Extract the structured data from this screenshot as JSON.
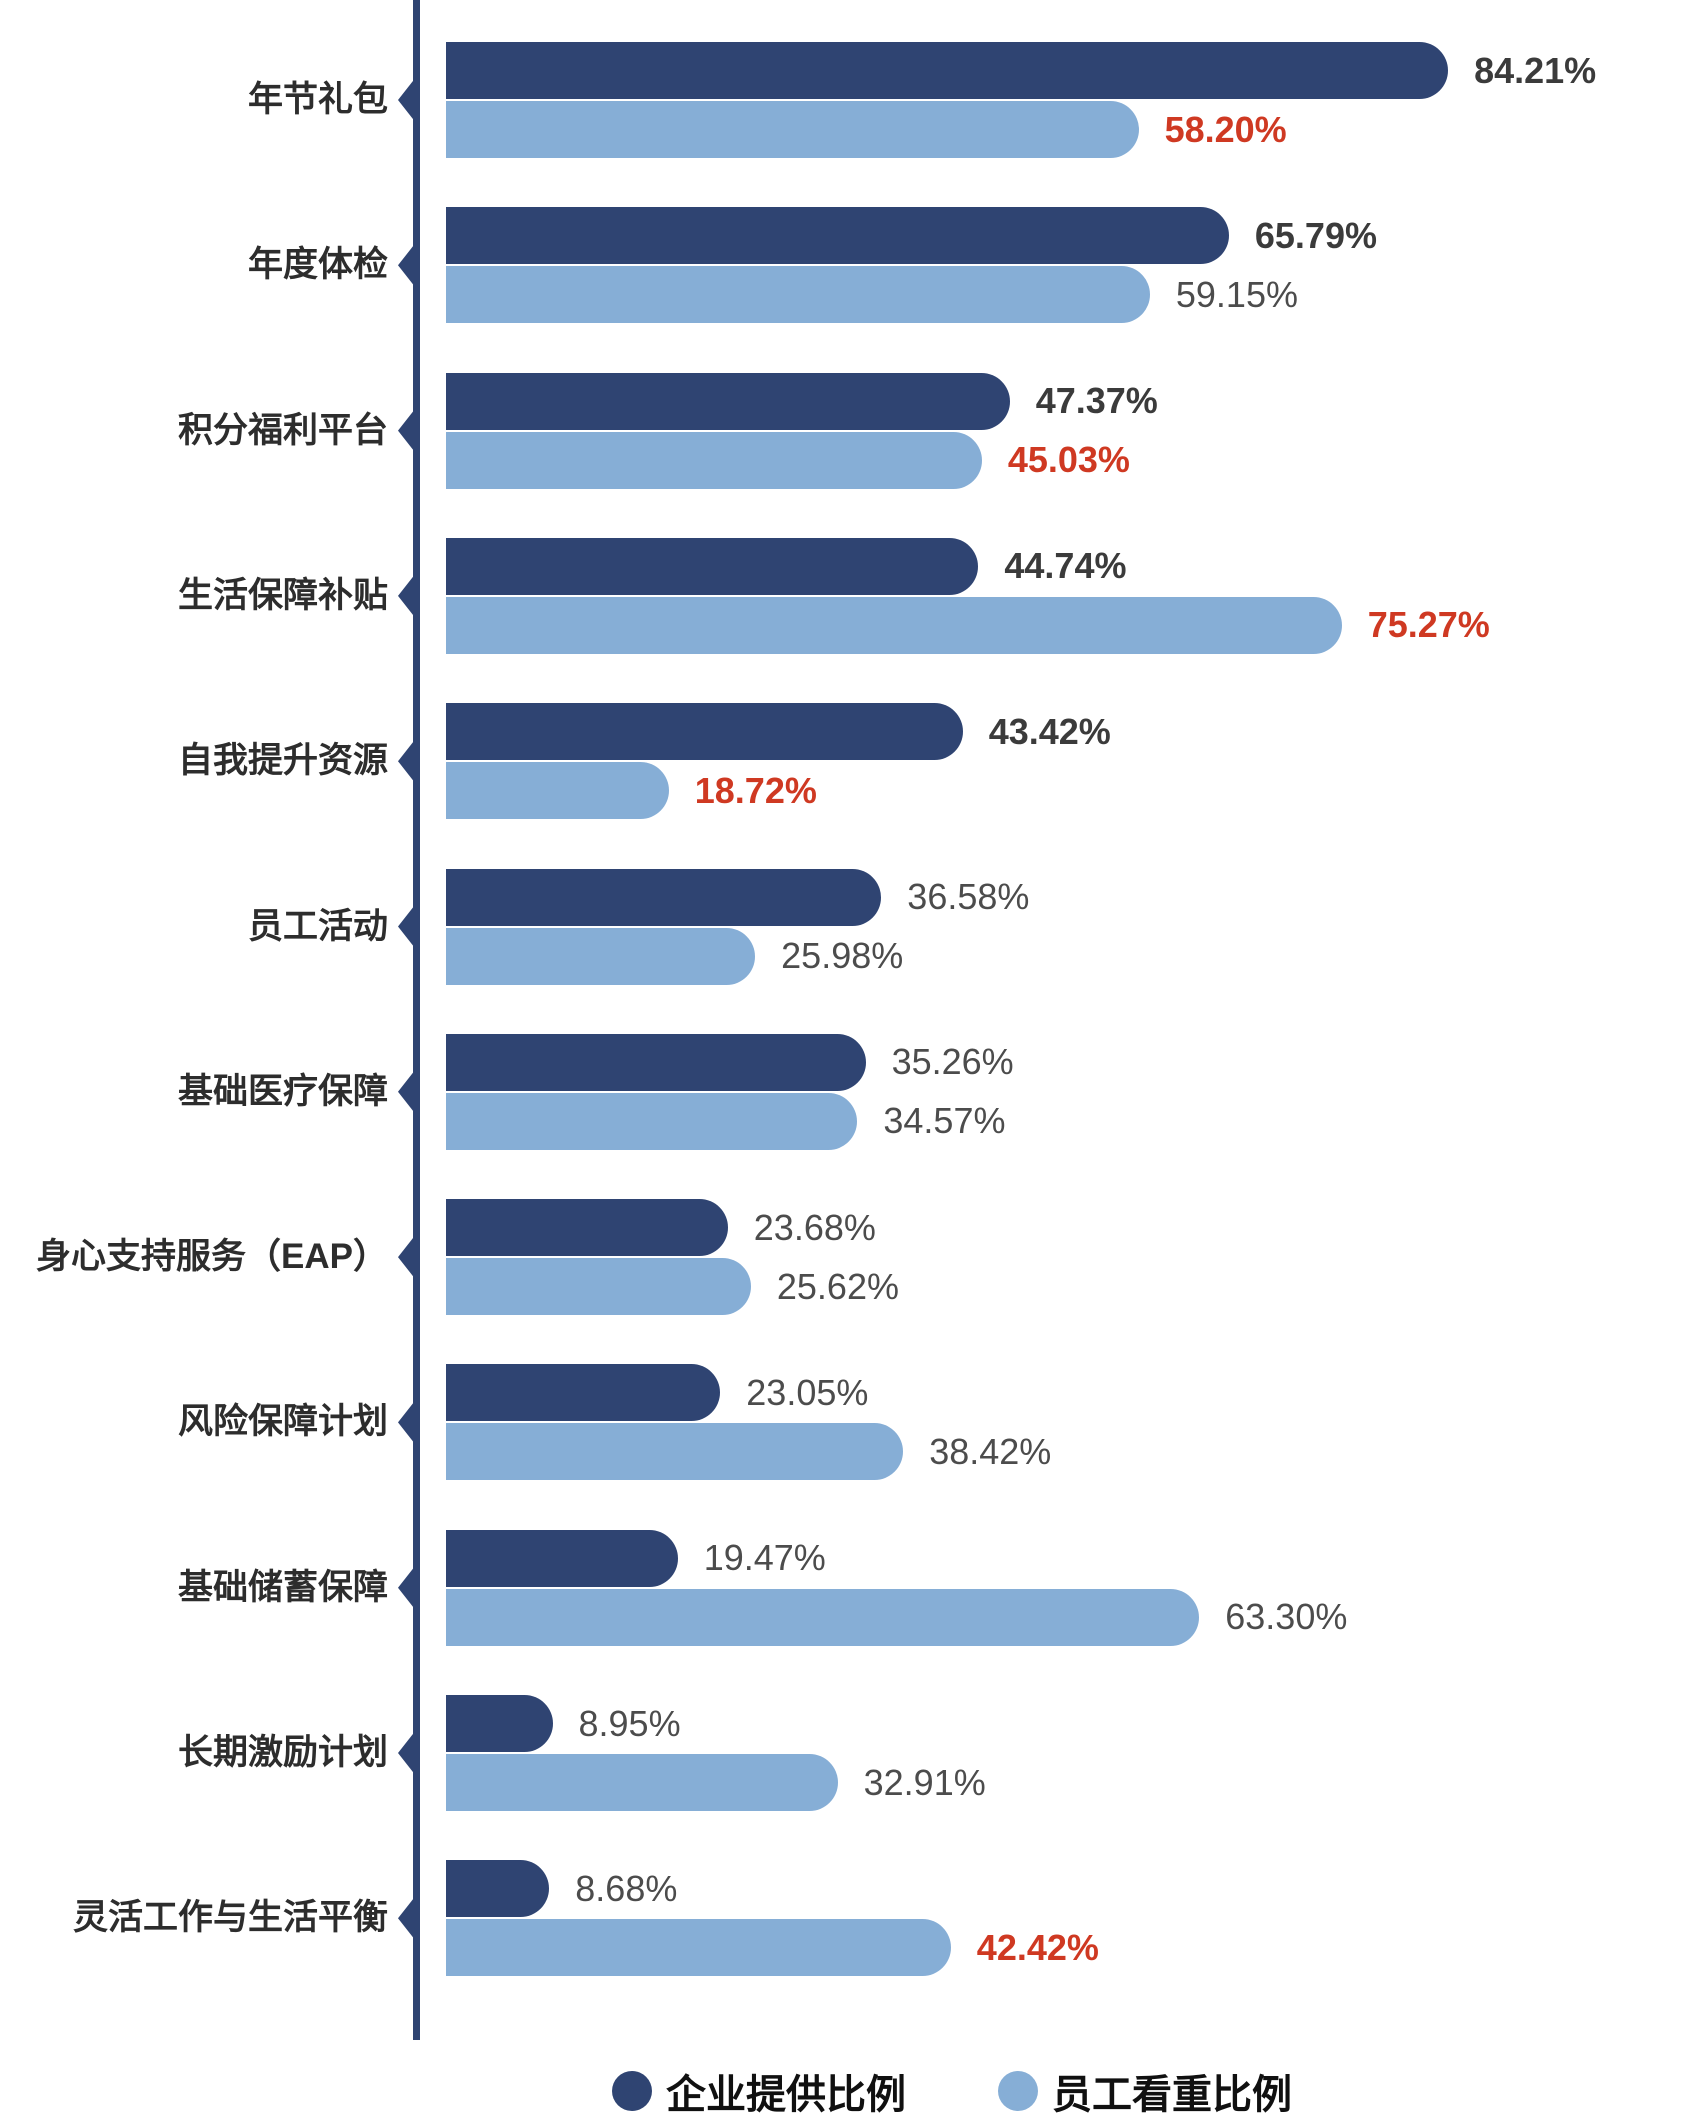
{
  "chart_data": {
    "type": "bar",
    "orientation": "horizontal",
    "grid": false,
    "xlim": [
      0,
      100
    ],
    "legend_position": "bottom-center",
    "series": [
      {
        "name": "企业提供比例",
        "color": "#2F4472"
      },
      {
        "name": "员工看重比例",
        "color": "#86AED6"
      }
    ],
    "rows": [
      {
        "category": "年节礼包",
        "company": 84.21,
        "company_label": "84.21%",
        "company_style": "emphasis",
        "employee": 58.2,
        "employee_label": "58.20%",
        "employee_style": "red"
      },
      {
        "category": "年度体检",
        "company": 65.79,
        "company_label": "65.79%",
        "company_style": "emphasis",
        "employee": 59.15,
        "employee_label": "59.15%",
        "employee_style": "normal"
      },
      {
        "category": "积分福利平台",
        "company": 47.37,
        "company_label": "47.37%",
        "company_style": "emphasis",
        "employee": 45.03,
        "employee_label": "45.03%",
        "employee_style": "red"
      },
      {
        "category": "生活保障补贴",
        "company": 44.74,
        "company_label": "44.74%",
        "company_style": "emphasis",
        "employee": 75.27,
        "employee_label": "75.27%",
        "employee_style": "red"
      },
      {
        "category": "自我提升资源",
        "company": 43.42,
        "company_label": "43.42%",
        "company_style": "emphasis",
        "employee": 18.72,
        "employee_label": "18.72%",
        "employee_style": "red"
      },
      {
        "category": "员工活动",
        "company": 36.58,
        "company_label": "36.58%",
        "company_style": "normal",
        "employee": 25.98,
        "employee_label": "25.98%",
        "employee_style": "normal"
      },
      {
        "category": "基础医疗保障",
        "company": 35.26,
        "company_label": "35.26%",
        "company_style": "normal",
        "employee": 34.57,
        "employee_label": "34.57%",
        "employee_style": "normal"
      },
      {
        "category": "身心支持服务（EAP）",
        "company": 23.68,
        "company_label": "23.68%",
        "company_style": "normal",
        "employee": 25.62,
        "employee_label": "25.62%",
        "employee_style": "normal"
      },
      {
        "category": "风险保障计划",
        "company": 23.05,
        "company_label": "23.05%",
        "company_style": "normal",
        "employee": 38.42,
        "employee_label": "38.42%",
        "employee_style": "normal"
      },
      {
        "category": "基础储蓄保障",
        "company": 19.47,
        "company_label": "19.47%",
        "company_style": "normal",
        "employee": 63.3,
        "employee_label": "63.30%",
        "employee_style": "normal"
      },
      {
        "category": "长期激励计划",
        "company": 8.95,
        "company_label": "8.95%",
        "company_style": "normal",
        "employee": 32.91,
        "employee_label": "32.91%",
        "employee_style": "normal"
      },
      {
        "category": "灵活工作与生活平衡",
        "company": 8.68,
        "company_label": "8.68%",
        "company_style": "normal",
        "employee": 42.42,
        "employee_label": "42.42%",
        "employee_style": "red"
      }
    ]
  },
  "colors": {
    "company_bar": "#2F4472",
    "employee_bar": "#86AED6",
    "axis": "#2F4472",
    "value_emphasis": "#3B3B3B",
    "value_normal": "#4C4C4C",
    "value_red": "#CF3922",
    "category_text": "#2D2D2D",
    "background": "#FFFFFF"
  }
}
